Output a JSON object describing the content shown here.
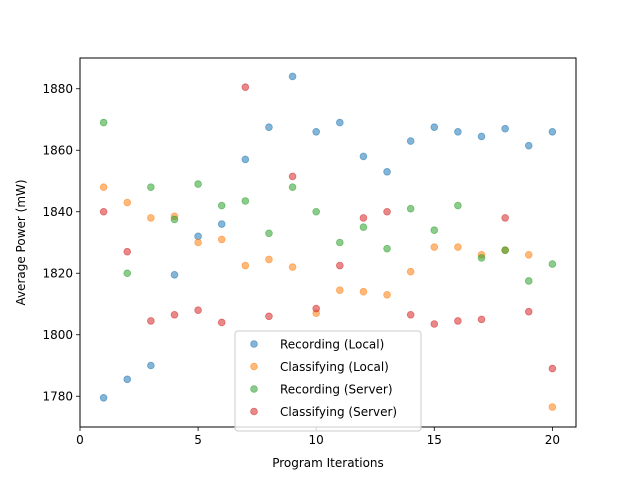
{
  "chart_data": {
    "type": "scatter",
    "title": "",
    "xlabel": "Program Iterations",
    "ylabel": "Average Power (mW)",
    "xlim": [
      0,
      21
    ],
    "ylim": [
      1770,
      1890
    ],
    "xticks": [
      0,
      5,
      10,
      15,
      20
    ],
    "yticks": [
      1780,
      1800,
      1820,
      1840,
      1860,
      1880
    ],
    "grid": false,
    "legend": "bottom-center",
    "series": [
      {
        "name": "Recording (Local)",
        "color": "#1f77b4",
        "x": [
          1,
          2,
          3,
          4,
          5,
          6,
          7,
          8,
          9,
          10,
          11,
          12,
          13,
          14,
          15,
          16,
          17,
          18,
          19,
          20
        ],
        "y": [
          1779.5,
          1785.5,
          1790,
          1819.5,
          1832,
          1836,
          1857,
          1867.5,
          1884,
          1866,
          1869,
          1858,
          1853,
          1863,
          1867.5,
          1866,
          1864.5,
          1867,
          1861.5,
          1866
        ]
      },
      {
        "name": "Classifying (Local)",
        "color": "#ff7f0e",
        "x": [
          1,
          2,
          3,
          4,
          5,
          6,
          7,
          8,
          9,
          10,
          11,
          12,
          13,
          14,
          15,
          16,
          17,
          18,
          19,
          20
        ],
        "y": [
          1848,
          1843,
          1838,
          1838.5,
          1830,
          1831,
          1822.5,
          1824.5,
          1822,
          1807,
          1814.5,
          1814,
          1813,
          1820.5,
          1828.5,
          1828.5,
          1826,
          1827.5,
          1826,
          1776.5
        ]
      },
      {
        "name": "Recording (Server)",
        "color": "#2ca02c",
        "x": [
          1,
          2,
          3,
          4,
          5,
          6,
          7,
          8,
          9,
          10,
          11,
          12,
          13,
          14,
          15,
          16,
          17,
          18,
          19,
          20
        ],
        "y": [
          1869,
          1820,
          1848,
          1837.5,
          1849,
          1842,
          1843.5,
          1833,
          1848,
          1840,
          1830,
          1835,
          1828,
          1841,
          1834,
          1842,
          1825,
          1827.5,
          1817.5,
          1823
        ]
      },
      {
        "name": "Classifying (Server)",
        "color": "#d62728",
        "x": [
          1,
          2,
          3,
          4,
          5,
          6,
          7,
          8,
          9,
          10,
          11,
          12,
          13,
          14,
          15,
          16,
          17,
          18,
          19,
          20
        ],
        "y": [
          1840,
          1827,
          1804.5,
          1806.5,
          1808,
          1804,
          1880.5,
          1806,
          1851.5,
          1808.5,
          1822.5,
          1838,
          1840,
          1806.5,
          1803.5,
          1804.5,
          1805,
          1838,
          1807.5,
          1789
        ]
      }
    ]
  }
}
